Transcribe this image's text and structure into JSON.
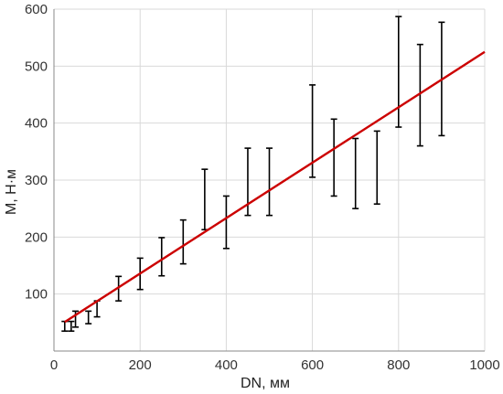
{
  "chart_data": {
    "type": "scatter",
    "xlabel": "DN, мм",
    "ylabel": "M, Н·м",
    "xlim": [
      0,
      1000
    ],
    "ylim": [
      0,
      600
    ],
    "x_ticks": [
      "0",
      "200",
      "400",
      "600",
      "800",
      "1000"
    ],
    "y_ticks": [
      "100",
      "200",
      "300",
      "400",
      "500",
      "600"
    ],
    "grid": true,
    "series": [
      {
        "kind": "error-range",
        "color": "#000000",
        "x": [
          25,
          40,
          50,
          80,
          100,
          150,
          200,
          250,
          300,
          350,
          400,
          450,
          500,
          600,
          650,
          700,
          750,
          800,
          850,
          900
        ],
        "low": [
          35,
          35,
          42,
          48,
          60,
          88,
          108,
          132,
          153,
          213,
          180,
          238,
          238,
          305,
          272,
          250,
          258,
          393,
          360,
          378
        ],
        "high": [
          52,
          52,
          70,
          70,
          88,
          131,
          163,
          199,
          230,
          319,
          272,
          356,
          356,
          467,
          407,
          373,
          386,
          587,
          538,
          577
        ]
      },
      {
        "kind": "trend-line",
        "color": "#cc0000",
        "x": [
          25,
          1000
        ],
        "y": [
          51,
          525
        ]
      }
    ]
  }
}
